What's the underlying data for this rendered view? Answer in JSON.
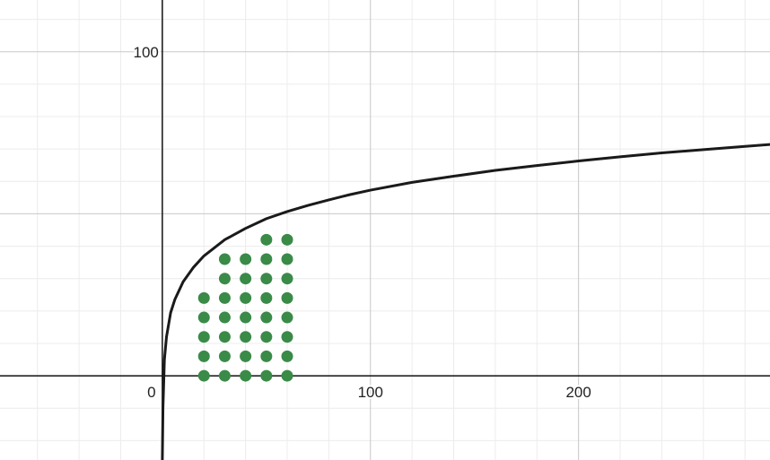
{
  "chart_data": {
    "type": "scatter",
    "title": "",
    "xlabel": "",
    "ylabel": "",
    "xlim": [
      -78,
      292
    ],
    "ylim": [
      -26,
      116
    ],
    "x_ticks": [
      0,
      100,
      200
    ],
    "y_ticks": [
      100
    ],
    "tick_labels": {
      "x0": "0",
      "x100": "100",
      "x200": "200",
      "y100": "100"
    },
    "grid": true,
    "minor_grid": true,
    "curve": {
      "description_free": true,
      "samples": [
        [
          0.01,
          -26
        ],
        [
          0.3,
          -10
        ],
        [
          1,
          5
        ],
        [
          2,
          12
        ],
        [
          4,
          19.5
        ],
        [
          6,
          23.5
        ],
        [
          10,
          29
        ],
        [
          15,
          33.5
        ],
        [
          20,
          37
        ],
        [
          30,
          42
        ],
        [
          40,
          45.5
        ],
        [
          50,
          48.5
        ],
        [
          60,
          50.7
        ],
        [
          70,
          52.6
        ],
        [
          80,
          54.3
        ],
        [
          90,
          55.9
        ],
        [
          100,
          57.3
        ],
        [
          120,
          59.7
        ],
        [
          140,
          61.6
        ],
        [
          160,
          63.4
        ],
        [
          180,
          64.9
        ],
        [
          200,
          66.3
        ],
        [
          220,
          67.6
        ],
        [
          240,
          68.8
        ],
        [
          260,
          69.8
        ],
        [
          280,
          70.8
        ],
        [
          292,
          71.4
        ]
      ],
      "color": "#1a1a1a"
    },
    "series": [
      {
        "color": "#3a8a48",
        "points": [
          [
            20,
            0
          ],
          [
            20,
            6
          ],
          [
            20,
            12
          ],
          [
            20,
            18
          ],
          [
            20,
            24
          ],
          [
            30,
            0
          ],
          [
            30,
            6
          ],
          [
            30,
            12
          ],
          [
            30,
            18
          ],
          [
            30,
            24
          ],
          [
            30,
            30
          ],
          [
            30,
            36
          ],
          [
            40,
            0
          ],
          [
            40,
            6
          ],
          [
            40,
            12
          ],
          [
            40,
            18
          ],
          [
            40,
            24
          ],
          [
            40,
            30
          ],
          [
            40,
            36
          ],
          [
            50,
            0
          ],
          [
            50,
            6
          ],
          [
            50,
            12
          ],
          [
            50,
            18
          ],
          [
            50,
            24
          ],
          [
            50,
            30
          ],
          [
            50,
            36
          ],
          [
            50,
            42
          ],
          [
            60,
            0
          ],
          [
            60,
            6
          ],
          [
            60,
            12
          ],
          [
            60,
            18
          ],
          [
            60,
            24
          ],
          [
            60,
            30
          ],
          [
            60,
            36
          ],
          [
            60,
            42
          ]
        ]
      }
    ],
    "colors": {
      "grid_major": "#c8c8c8",
      "grid_minor": "#ececec",
      "axis": "#111111"
    }
  }
}
